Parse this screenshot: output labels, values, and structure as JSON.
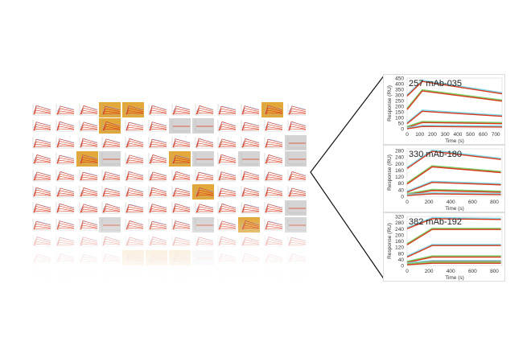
{
  "colors": {
    "gold": "#e2a83a",
    "gray": "#d4d4d4",
    "fit": "#d9391c",
    "data_a": "#7ed7e8",
    "data_b": "#7ccf6a"
  },
  "grid": {
    "columns": 12,
    "rows": 11,
    "highlighted_gold": [
      [
        0,
        3
      ],
      [
        0,
        4
      ],
      [
        0,
        10
      ],
      [
        1,
        3
      ],
      [
        3,
        2
      ],
      [
        3,
        6
      ],
      [
        5,
        7
      ],
      [
        7,
        9
      ],
      [
        9,
        4
      ],
      [
        9,
        5
      ],
      [
        9,
        6
      ]
    ],
    "highlighted_gray": [
      [
        1,
        6
      ],
      [
        1,
        7
      ],
      [
        2,
        11
      ],
      [
        3,
        3
      ],
      [
        3,
        7
      ],
      [
        3,
        9
      ],
      [
        3,
        11
      ],
      [
        6,
        11
      ],
      [
        7,
        3
      ],
      [
        7,
        7
      ],
      [
        7,
        11
      ],
      [
        9,
        7
      ]
    ]
  },
  "chart_data": [
    {
      "type": "line",
      "title": "257 mAb-035",
      "xlabel": "Time (s)",
      "ylabel": "Response (RU)",
      "xlim": [
        0,
        750
      ],
      "ylim": [
        0,
        450
      ],
      "xticks": [
        0,
        100,
        200,
        300,
        400,
        500,
        600,
        700
      ],
      "yticks": [
        0,
        50,
        100,
        150,
        200,
        250,
        300,
        350,
        400,
        450
      ],
      "series": [
        {
          "x": [
            0,
            120,
            750
          ],
          "y": [
            290,
            420,
            310
          ]
        },
        {
          "x": [
            0,
            120,
            750
          ],
          "y": [
            170,
            335,
            245
          ]
        },
        {
          "x": [
            0,
            120,
            750
          ],
          "y": [
            45,
            155,
            110
          ]
        },
        {
          "x": [
            0,
            120,
            750
          ],
          "y": [
            10,
            55,
            45
          ]
        },
        {
          "x": [
            0,
            120,
            750
          ],
          "y": [
            0,
            20,
            15
          ]
        }
      ]
    },
    {
      "type": "line",
      "title": "330 mAb-180",
      "xlabel": "Time (s)",
      "ylabel": "Response (RU)",
      "xlim": [
        0,
        870
      ],
      "ylim": [
        0,
        290
      ],
      "xticks": [
        0,
        200,
        400,
        600,
        800
      ],
      "yticks": [
        0,
        40,
        80,
        120,
        160,
        200,
        240,
        280
      ],
      "series": [
        {
          "x": [
            0,
            230,
            860
          ],
          "y": [
            170,
            275,
            225
          ]
        },
        {
          "x": [
            0,
            230,
            860
          ],
          "y": [
            75,
            180,
            145
          ]
        },
        {
          "x": [
            0,
            230,
            860
          ],
          "y": [
            25,
            85,
            70
          ]
        },
        {
          "x": [
            0,
            230,
            860
          ],
          "y": [
            10,
            35,
            25
          ]
        },
        {
          "x": [
            0,
            230,
            860
          ],
          "y": [
            5,
            15,
            10
          ]
        }
      ]
    },
    {
      "type": "line",
      "title": "382 mAb-192",
      "xlabel": "Time (s)",
      "ylabel": "Response (RU)",
      "xlim": [
        0,
        870
      ],
      "ylim": [
        0,
        320
      ],
      "xticks": [
        0,
        200,
        400,
        600,
        800
      ],
      "yticks": [
        0,
        40,
        80,
        120,
        160,
        200,
        240,
        280,
        320
      ],
      "series": [
        {
          "x": [
            0,
            230,
            860
          ],
          "y": [
            240,
            305,
            300
          ]
        },
        {
          "x": [
            0,
            230,
            860
          ],
          "y": [
            135,
            235,
            235
          ]
        },
        {
          "x": [
            0,
            230,
            860
          ],
          "y": [
            55,
            130,
            130
          ]
        },
        {
          "x": [
            0,
            230,
            860
          ],
          "y": [
            20,
            55,
            55
          ]
        },
        {
          "x": [
            0,
            230,
            860
          ],
          "y": [
            10,
            25,
            25
          ]
        },
        {
          "x": [
            0,
            230,
            860
          ],
          "y": [
            5,
            15,
            15
          ]
        }
      ]
    }
  ]
}
